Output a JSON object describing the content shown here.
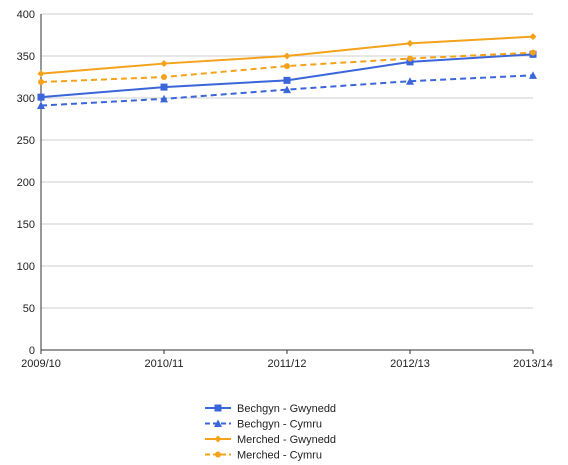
{
  "chart_data": {
    "type": "line",
    "categories": [
      "2009/10",
      "2010/11",
      "2011/12",
      "2012/13",
      "2013/14"
    ],
    "ylim": [
      0,
      400
    ],
    "yticks": [
      0,
      50,
      100,
      150,
      200,
      250,
      300,
      350,
      400
    ],
    "grid": "horizontal",
    "legend_position": "bottom",
    "series": [
      {
        "name": "Bechgyn - Gwynedd",
        "values": [
          301,
          313,
          321,
          343,
          352
        ],
        "color": "#3a66d9",
        "dash": "solid",
        "marker": "square"
      },
      {
        "name": "Bechgyn - Cymru",
        "values": [
          291,
          299,
          310,
          320,
          327
        ],
        "color": "#3a66d9",
        "dash": "dashed",
        "marker": "triangle"
      },
      {
        "name": "Merched - Gwynedd",
        "values": [
          329,
          341,
          350,
          365,
          373
        ],
        "color": "#f5a21b",
        "dash": "solid",
        "marker": "diamond"
      },
      {
        "name": "Merched - Cymru",
        "values": [
          319,
          325,
          338,
          347,
          354
        ],
        "color": "#f5a21b",
        "dash": "dashed",
        "marker": "circle"
      }
    ]
  }
}
